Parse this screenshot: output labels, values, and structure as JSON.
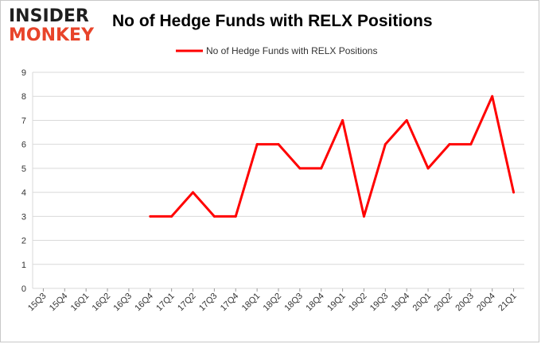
{
  "header": {
    "logo_top": "INSIDER",
    "logo_bottom": "MONKEY",
    "title": "No of Hedge Funds with RELX Positions"
  },
  "colors": {
    "series": "#ff0000",
    "grid": "#d9d9d9",
    "logo_accent": "#e8442a"
  },
  "chart_data": {
    "type": "line",
    "title": "No of Hedge Funds with RELX Positions",
    "xlabel": "",
    "ylabel": "",
    "ylim": [
      0,
      9
    ],
    "yticks": [
      0,
      1,
      2,
      3,
      4,
      5,
      6,
      7,
      8,
      9
    ],
    "grid": true,
    "legend": "top-center",
    "categories": [
      "15Q3",
      "15Q4",
      "16Q1",
      "16Q2",
      "16Q3",
      "16Q4",
      "17Q1",
      "17Q2",
      "17Q3",
      "17Q4",
      "18Q1",
      "18Q2",
      "18Q3",
      "18Q4",
      "19Q1",
      "19Q2",
      "19Q3",
      "19Q4",
      "20Q1",
      "20Q2",
      "20Q3",
      "20Q4",
      "21Q1"
    ],
    "series": [
      {
        "name": "No of Hedge Funds with RELX Positions",
        "values": [
          null,
          null,
          null,
          null,
          null,
          3,
          3,
          4,
          3,
          3,
          6,
          6,
          5,
          5,
          7,
          3,
          6,
          7,
          5,
          6,
          6,
          8,
          4
        ]
      }
    ]
  }
}
